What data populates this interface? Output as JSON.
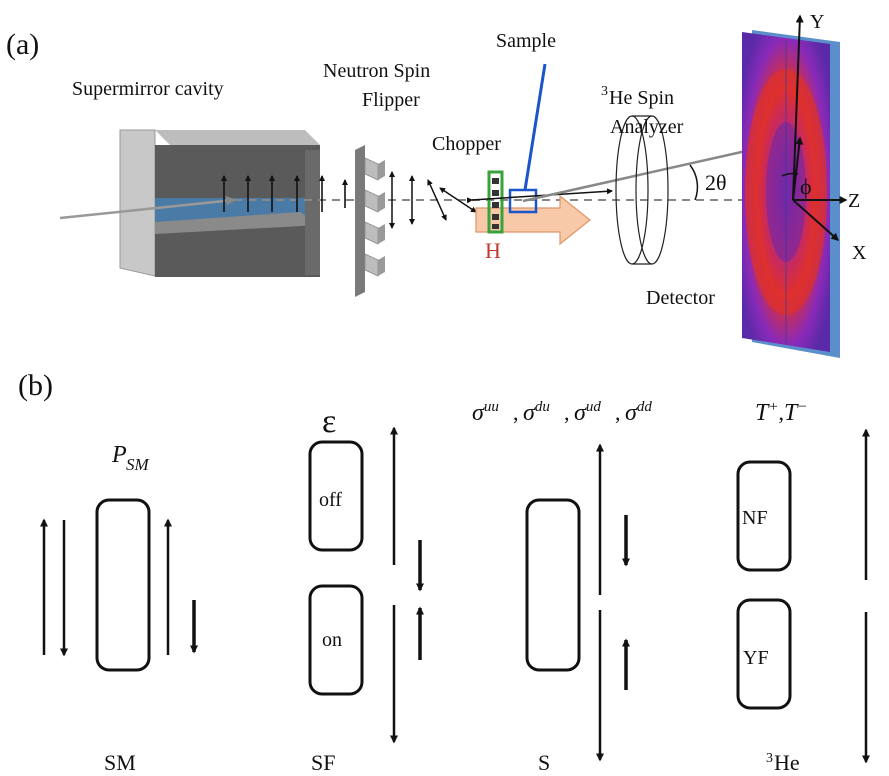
{
  "panel_a": {
    "label": "(a)",
    "supermirror": "Supermirror cavity",
    "flipper_line1": "Neutron Spin",
    "flipper_line2": "Flipper",
    "sample": "Sample",
    "chopper": "Chopper",
    "analyzer_sup": "3",
    "analyzer_line1": "He Spin",
    "analyzer_line2": "Analyzer",
    "angle": "2θ",
    "field": "H",
    "detector": "Detector",
    "axis_y": "Y",
    "axis_x": "X",
    "axis_z": "Z",
    "phi": "ϕ"
  },
  "panel_b": {
    "label": "(b)",
    "psm_main": "P",
    "psm_sub": "SM",
    "epsilon": "ε",
    "sigma_line": [
      "σ",
      "uu",
      "σ",
      "du",
      "σ",
      "ud",
      "σ",
      "dd"
    ],
    "tplus": "T",
    "tplus_sup": "+",
    "tminus": "T",
    "tminus_sup": "−",
    "box_off": "off",
    "box_on": "on",
    "box_nf": "NF",
    "box_yf": "YF",
    "bottom_sm": "SM",
    "bottom_sf": "SF",
    "bottom_s": "S",
    "bottom_he_sup": "3",
    "bottom_he": "He"
  },
  "colors": {
    "cavity_dark": "#555555",
    "cavity_blue": "#4a7aa6",
    "field_arrow": "#f7c9a8",
    "field_label": "#c0392b",
    "sample_blue": "#1a56c8",
    "chopper_green": "#3aa23a",
    "detector_purple": "#5a2aa8",
    "detector_red": "#d8302a",
    "detector_frame": "#5b8fcc"
  }
}
